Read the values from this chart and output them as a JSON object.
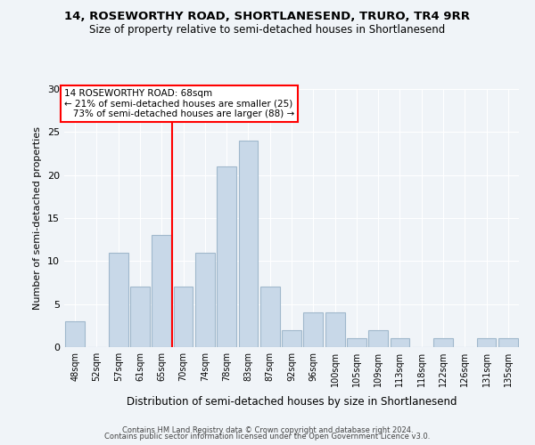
{
  "title": "14, ROSEWORTHY ROAD, SHORTLANESEND, TRURO, TR4 9RR",
  "subtitle": "Size of property relative to semi-detached houses in Shortlanesend",
  "xlabel": "Distribution of semi-detached houses by size in Shortlanesend",
  "ylabel": "Number of semi-detached properties",
  "bar_labels": [
    "48sqm",
    "52sqm",
    "57sqm",
    "61sqm",
    "65sqm",
    "70sqm",
    "74sqm",
    "78sqm",
    "83sqm",
    "87sqm",
    "92sqm",
    "96sqm",
    "100sqm",
    "105sqm",
    "109sqm",
    "113sqm",
    "118sqm",
    "122sqm",
    "126sqm",
    "131sqm",
    "135sqm"
  ],
  "bar_values": [
    3,
    0,
    11,
    7,
    13,
    7,
    11,
    21,
    24,
    7,
    2,
    4,
    4,
    1,
    2,
    1,
    0,
    1,
    0,
    1,
    1
  ],
  "bar_color": "#c8d8e8",
  "bar_edgecolor": "#a0b8cc",
  "property_label": "14 ROSEWORTHY ROAD: 68sqm",
  "pct_smaller": 21,
  "pct_larger": 73,
  "n_smaller": 25,
  "n_larger": 88,
  "vline_x": 5,
  "vline_color": "red",
  "ylim": [
    0,
    30
  ],
  "yticks": [
    0,
    5,
    10,
    15,
    20,
    25,
    30
  ],
  "annotation_box_color": "white",
  "annotation_box_edgecolor": "red",
  "footer_line1": "Contains HM Land Registry data © Crown copyright and database right 2024.",
  "footer_line2": "Contains public sector information licensed under the Open Government Licence v3.0.",
  "background_color": "#f0f4f8"
}
